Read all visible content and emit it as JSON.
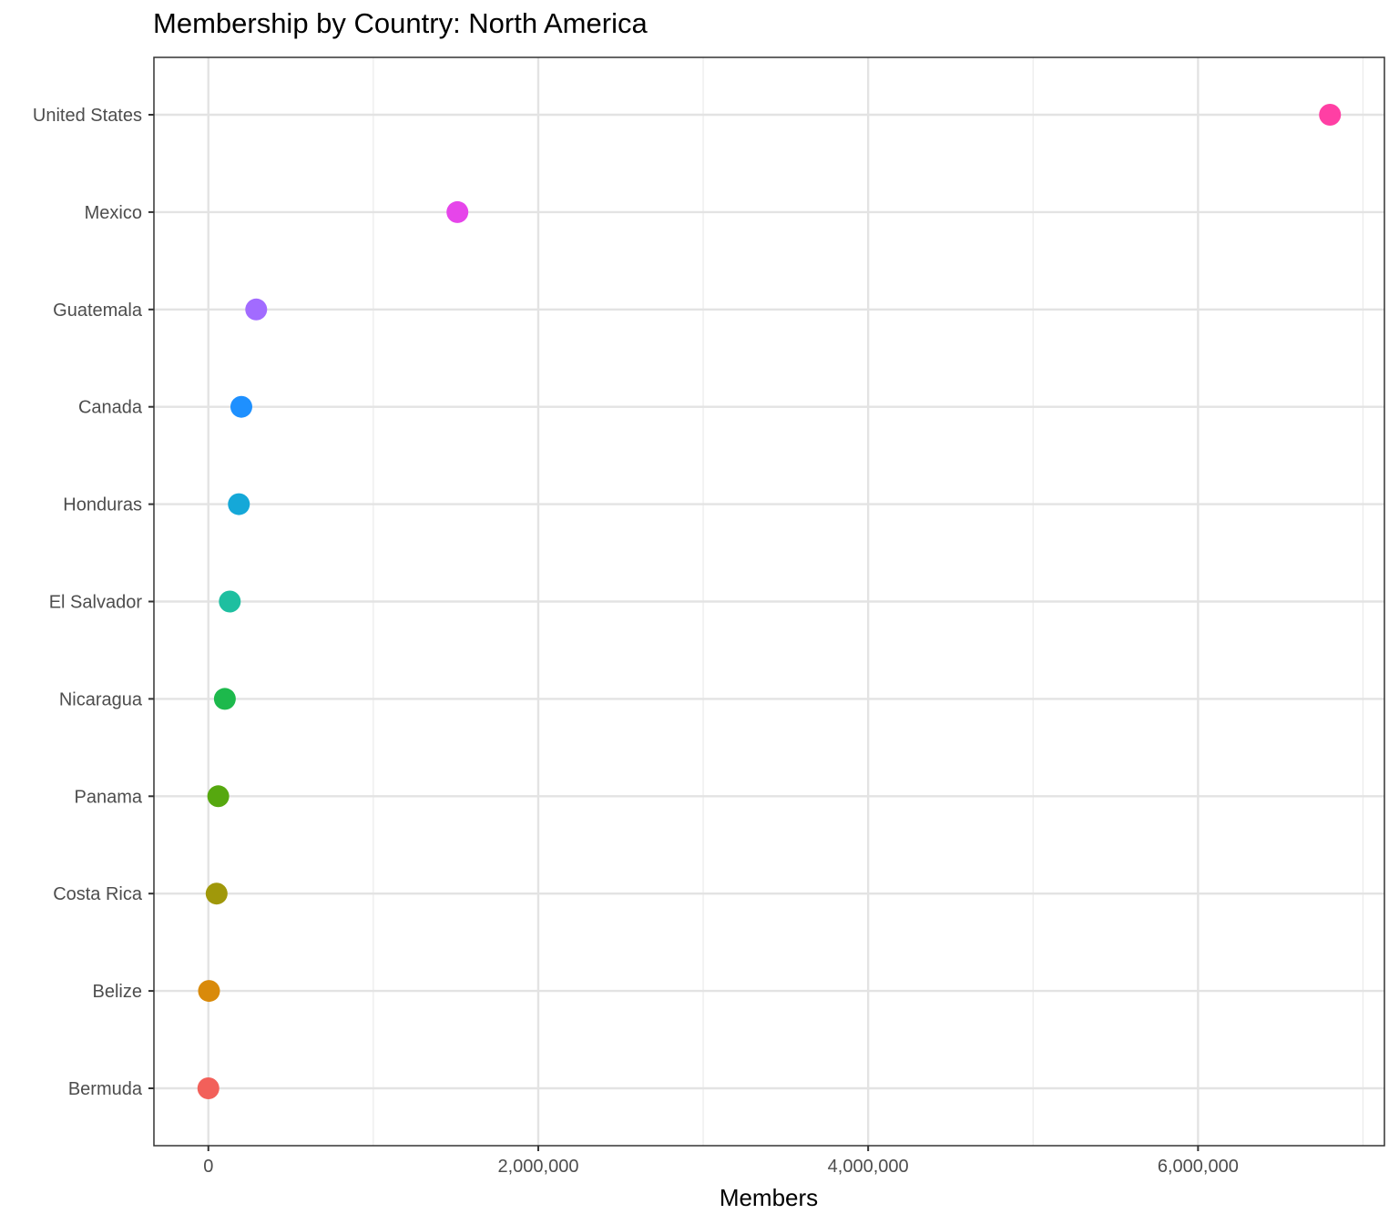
{
  "chart_data": {
    "type": "scatter",
    "title": "Membership by Country: North America",
    "xlabel": "Members",
    "ylabel": "",
    "xlim": [
      -330000,
      7130000
    ],
    "grid": true,
    "legend": "none",
    "x_ticks": [
      {
        "value": 0,
        "label": "0"
      },
      {
        "value": 2000000,
        "label": "2,000,000"
      },
      {
        "value": 4000000,
        "label": "4,000,000"
      },
      {
        "value": 6000000,
        "label": "6,000,000"
      }
    ],
    "x_minor": [
      1000000,
      3000000,
      5000000,
      7000000
    ],
    "points": [
      {
        "country": "United States",
        "value": 6800000,
        "color": "#FF3FA4"
      },
      {
        "country": "Mexico",
        "value": 1510000,
        "color": "#E645EA"
      },
      {
        "country": "Guatemala",
        "value": 290000,
        "color": "#A26BFF"
      },
      {
        "country": "Canada",
        "value": 200000,
        "color": "#1E90FF"
      },
      {
        "country": "Honduras",
        "value": 185000,
        "color": "#15A8D8"
      },
      {
        "country": "El Salvador",
        "value": 130000,
        "color": "#1EBFA0"
      },
      {
        "country": "Nicaragua",
        "value": 100000,
        "color": "#1DB94C"
      },
      {
        "country": "Panama",
        "value": 60000,
        "color": "#56A80F"
      },
      {
        "country": "Costa Rica",
        "value": 50000,
        "color": "#A0980A"
      },
      {
        "country": "Belize",
        "value": 4000,
        "color": "#D98A0A"
      },
      {
        "country": "Bermuda",
        "value": 0,
        "color": "#F2605A"
      }
    ]
  }
}
